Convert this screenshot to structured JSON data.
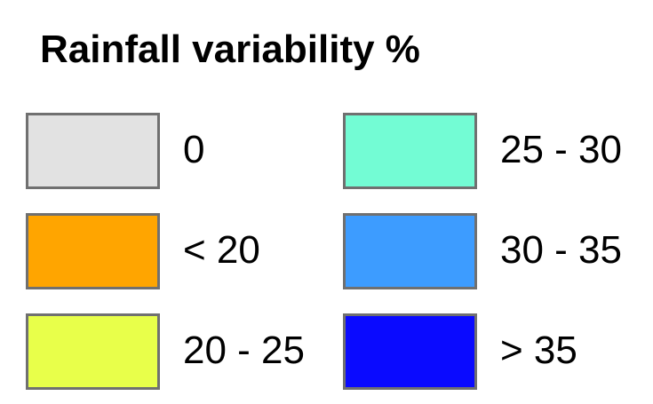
{
  "legend": {
    "title": "Rainfall variability %",
    "items": [
      {
        "label": "0",
        "color": "#e2e2e2"
      },
      {
        "label": "< 20",
        "color": "#ffa500"
      },
      {
        "label": "20 - 25",
        "color": "#e8ff4a"
      },
      {
        "label": "25 - 30",
        "color": "#73fcd4"
      },
      {
        "label": "30 - 35",
        "color": "#3d9cff"
      },
      {
        "label": "> 35",
        "color": "#0a0aff"
      }
    ]
  }
}
